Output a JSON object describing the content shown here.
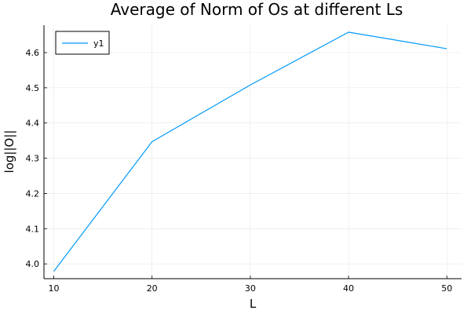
{
  "chart_data": {
    "type": "line",
    "title": "Average of Norm of Os at different Ls",
    "xlabel": "L",
    "ylabel": "log||O||",
    "x": [
      10,
      20,
      30,
      40,
      50
    ],
    "series": [
      {
        "name": "y1",
        "values": [
          3.979,
          4.347,
          4.508,
          4.658,
          4.611
        ]
      }
    ],
    "xlim": [
      9,
      51.5
    ],
    "ylim": [
      3.958,
      4.678
    ],
    "xticks": [
      10,
      20,
      30,
      40,
      50
    ],
    "xtick_labels": [
      "10",
      "20",
      "30",
      "40",
      "50"
    ],
    "yticks": [
      4.0,
      4.1,
      4.2,
      4.3,
      4.4,
      4.5,
      4.6
    ],
    "ytick_labels": [
      "4.0",
      "4.1",
      "4.2",
      "4.3",
      "4.4",
      "4.5",
      "4.6"
    ],
    "grid": true,
    "legend_position": "top-left",
    "colors": {
      "series": "#009AFA",
      "grid": "#E8E8E8",
      "axis": "#000000"
    }
  }
}
